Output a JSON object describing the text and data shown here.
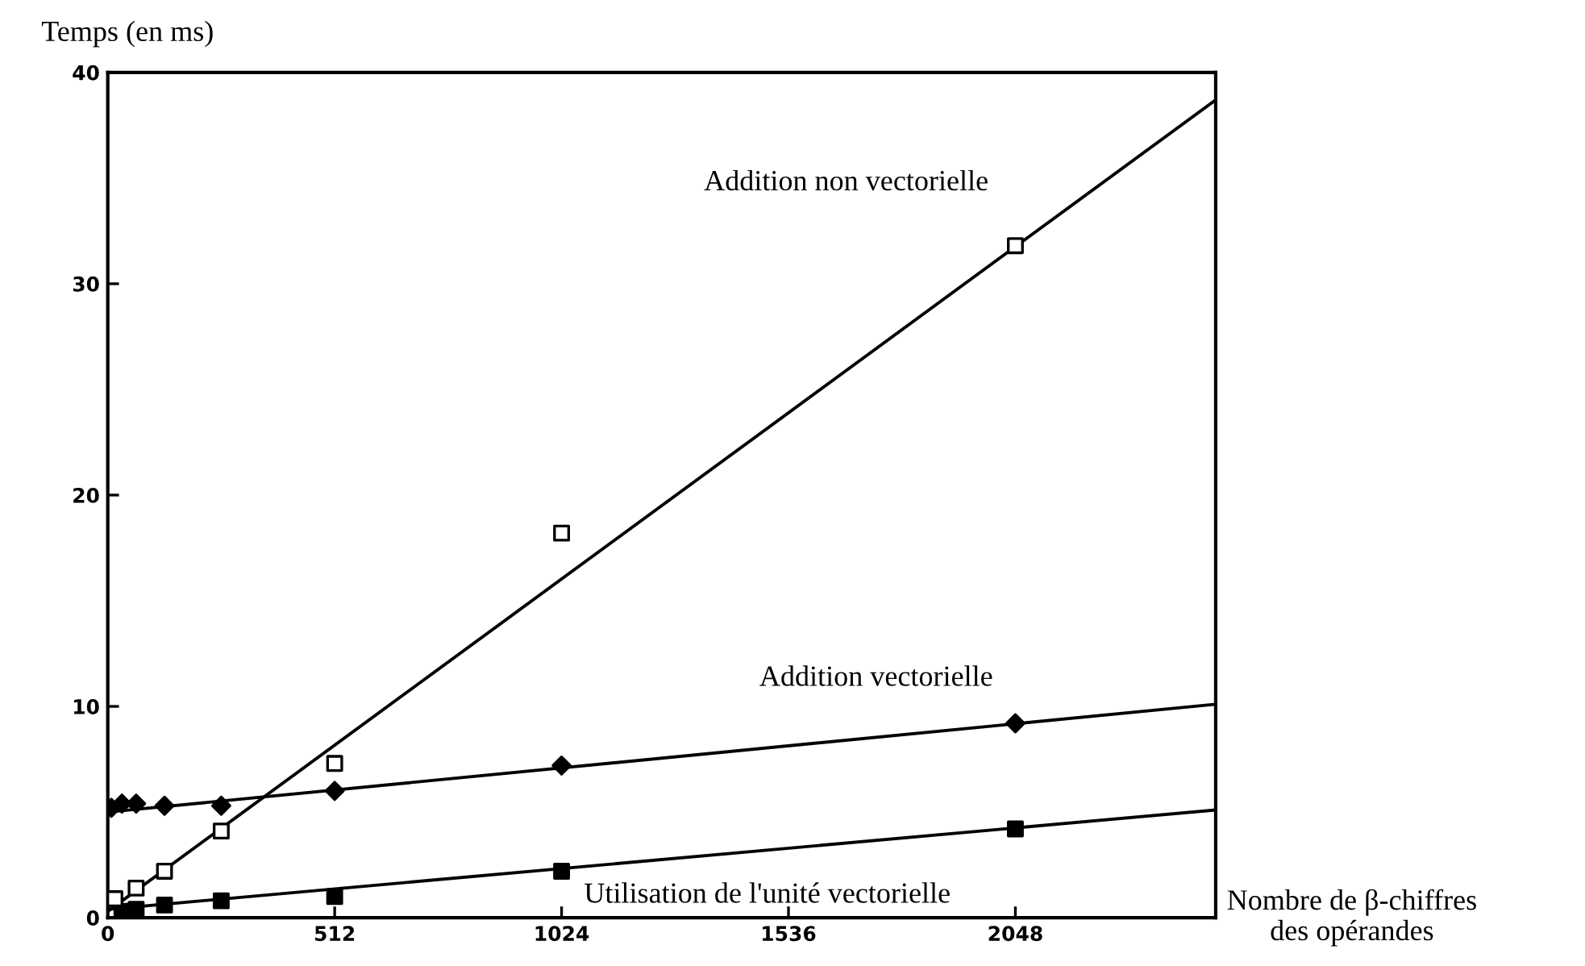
{
  "chart_data": {
    "type": "scatter",
    "ylabel": "Temps (en ms)",
    "xlabel": "Nombre de β-chiffres\ndes opérandes",
    "xlim": [
      0,
      2500
    ],
    "ylim": [
      0,
      40
    ],
    "xticks": [
      0,
      512,
      1024,
      1536,
      2048
    ],
    "yticks": [
      0,
      10,
      20,
      30,
      40
    ],
    "grid": false,
    "legend": false,
    "series": [
      {
        "name": "Addition non vectorielle",
        "color": "#000000",
        "marker": "square_open",
        "x": [
          16,
          64,
          128,
          256,
          512,
          1024,
          2048
        ],
        "values": [
          0.9,
          1.4,
          2.2,
          4.1,
          7.3,
          18.2,
          31.8
        ]
      },
      {
        "name": "Addition vectorielle",
        "color": "#000000",
        "marker": "diamond",
        "x": [
          8,
          32,
          64,
          128,
          256,
          512,
          1024,
          2048
        ],
        "values": [
          5.2,
          5.4,
          5.4,
          5.3,
          5.3,
          6.0,
          7.2,
          9.2
        ]
      },
      {
        "name": "Utilisation de l'unité vectorielle",
        "color": "#000000",
        "marker": "square",
        "x": [
          32,
          64,
          128,
          256,
          512,
          1024,
          2048
        ],
        "values": [
          0.3,
          0.4,
          0.6,
          0.8,
          1.0,
          2.2,
          4.2
        ]
      },
      {
        "type": "line",
        "color": "#000000",
        "x": [
          0,
          2500
        ],
        "values": [
          0.3,
          38.7
        ]
      },
      {
        "type": "line",
        "color": "#000000",
        "x": [
          0,
          2500
        ],
        "values": [
          5.0,
          10.1
        ]
      },
      {
        "type": "line",
        "color": "#000000",
        "x": [
          0,
          2500
        ],
        "values": [
          0.4,
          5.1
        ]
      }
    ]
  }
}
